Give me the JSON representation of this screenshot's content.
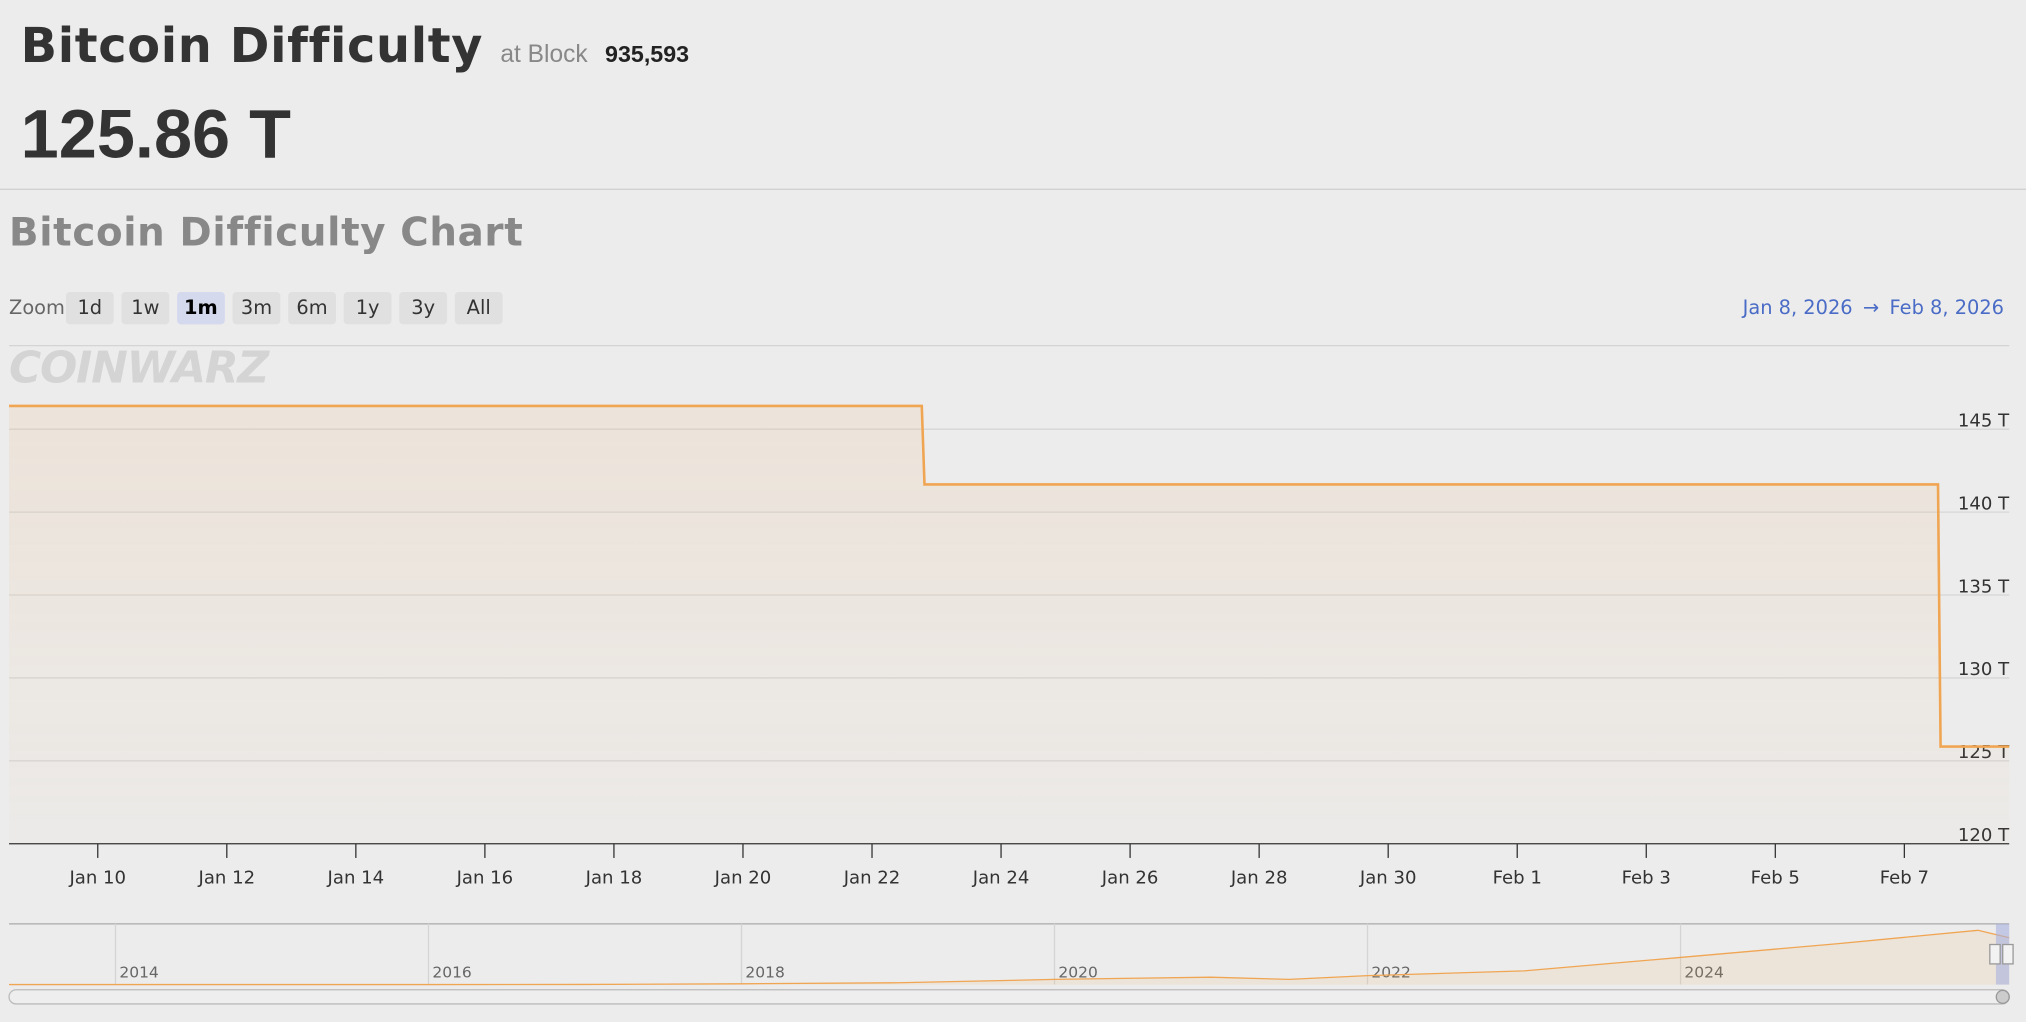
{
  "header": {
    "title": "Bitcoin Difficulty",
    "at_label": "at Block",
    "block": "935,593",
    "current": "125.86 T"
  },
  "chart_title": "Bitcoin Difficulty Chart",
  "zoom": {
    "label": "Zoom",
    "buttons": [
      "1d",
      "1w",
      "1m",
      "3m",
      "6m",
      "1y",
      "3y",
      "All"
    ],
    "selected": "1m"
  },
  "range": {
    "from": "Jan 8, 2026",
    "arrow": "→",
    "to": "Feb 8, 2026"
  },
  "watermark": "COINWARZ",
  "chart_data": {
    "type": "line",
    "step": true,
    "color": "#f0a552",
    "grid": true,
    "x": [
      "2026-01-08T15:00",
      "2026-01-22T18:30",
      "2026-01-22T19:30",
      "2026-02-07T12:30",
      "2026-02-07T13:30",
      "2026-02-08T15:00"
    ],
    "series": [
      {
        "name": "Difficulty",
        "color": "#f0a552",
        "values": [
          146.4,
          146.4,
          141.67,
          141.67,
          125.86,
          125.86
        ]
      }
    ],
    "xlim": [
      "2026-01-08T15:00",
      "2026-02-08T15:00"
    ],
    "xticks": [
      {
        "value": "2026-01-10",
        "label": "Jan 10"
      },
      {
        "value": "2026-01-12",
        "label": "Jan 12"
      },
      {
        "value": "2026-01-14",
        "label": "Jan 14"
      },
      {
        "value": "2026-01-16",
        "label": "Jan 16"
      },
      {
        "value": "2026-01-18",
        "label": "Jan 18"
      },
      {
        "value": "2026-01-20",
        "label": "Jan 20"
      },
      {
        "value": "2026-01-22",
        "label": "Jan 22"
      },
      {
        "value": "2026-01-24",
        "label": "Jan 24"
      },
      {
        "value": "2026-01-26",
        "label": "Jan 26"
      },
      {
        "value": "2026-01-28",
        "label": "Jan 28"
      },
      {
        "value": "2026-01-30",
        "label": "Jan 30"
      },
      {
        "value": "2026-02-01",
        "label": "Feb 1"
      },
      {
        "value": "2026-02-03",
        "label": "Feb 3"
      },
      {
        "value": "2026-02-05",
        "label": "Feb 5"
      },
      {
        "value": "2026-02-07",
        "label": "Feb 7"
      }
    ],
    "ylim": [
      120,
      150
    ],
    "yticks": [
      {
        "value": 120,
        "label": "120 T"
      },
      {
        "value": 125,
        "label": "125 T"
      },
      {
        "value": 130,
        "label": "130 T"
      },
      {
        "value": 135,
        "label": "135 T"
      },
      {
        "value": 140,
        "label": "140 T"
      },
      {
        "value": 145,
        "label": "145 T"
      }
    ],
    "navigator": {
      "x": [
        2013.32,
        2014,
        2015,
        2016,
        2017,
        2018,
        2019,
        2020,
        2020.5,
        2021,
        2021.5,
        2022,
        2023,
        2024,
        2025,
        2025.9,
        2026.1
      ],
      "values": [
        0.01,
        0.02,
        0.05,
        0.1,
        0.3,
        2,
        5,
        14,
        17,
        20,
        14,
        24,
        37,
        73,
        110,
        146,
        125.86
      ],
      "xlim": [
        2013.32,
        2026.1
      ],
      "ylim": [
        0,
        160
      ],
      "xticks": [
        2014,
        2016,
        2018,
        2020,
        2022,
        2024
      ]
    }
  }
}
